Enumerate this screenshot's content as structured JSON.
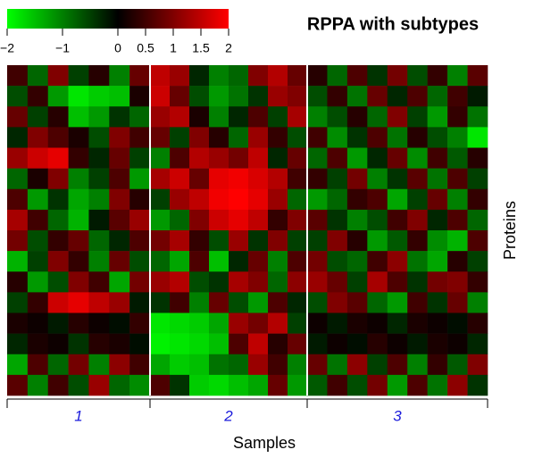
{
  "chart_data": {
    "type": "heatmap",
    "title": "RPPA with subtypes",
    "xlabel": "Samples",
    "ylabel": "Proteins",
    "zlim": [
      -2,
      2
    ],
    "colors": [
      "#00ff00",
      "#000000",
      "#ff0000"
    ],
    "zticks": [
      {
        "value": -2,
        "label": "−2"
      },
      {
        "value": -1,
        "label": "−1"
      },
      0,
      0.5,
      1,
      1.5,
      2
    ],
    "series": [
      {
        "name": "1",
        "values": [
          [
            0.5,
            -0.8,
            1,
            -0.5,
            0.3,
            -1,
            0.8
          ],
          [
            -0.6,
            0.4,
            -1.2,
            -1.8,
            -1.6,
            -1.5,
            0.2
          ],
          [
            0.8,
            -0.5,
            0.3,
            -1.5,
            -1.2,
            -0.4,
            -0.8
          ],
          [
            -0.3,
            1,
            0.6,
            0.2,
            -0.6,
            1,
            0.5
          ],
          [
            1.2,
            1.6,
            1.8,
            0.4,
            -0.3,
            0.8,
            -0.5
          ],
          [
            -0.8,
            0.2,
            1,
            -1,
            -0.5,
            0.6,
            -1.2
          ],
          [
            0.6,
            -1.2,
            -0.4,
            -1.3,
            -1,
            1,
            0.3
          ],
          [
            1.3,
            0.5,
            -0.8,
            -1.4,
            -0.2,
            0.7,
            1.2
          ],
          [
            0.9,
            -0.6,
            0.4,
            0.8,
            -0.8,
            -0.3,
            0.6
          ],
          [
            -1.4,
            -0.5,
            1,
            0.4,
            -1,
            0.8,
            -0.6
          ],
          [
            0.3,
            -1.2,
            -0.6,
            1,
            0.5,
            -1.3,
            0.9
          ],
          [
            -0.5,
            0.4,
            1.6,
            1.8,
            1.5,
            1.2,
            -0.2
          ],
          [
            0.2,
            0.1,
            -0.2,
            0.3,
            0.1,
            -0.1,
            0.4
          ],
          [
            -0.3,
            0.2,
            0.1,
            -0.4,
            0.3,
            0.2,
            -0.1
          ],
          [
            -1.3,
            0.6,
            -0.8,
            0.9,
            -1,
            1.1,
            0.5
          ],
          [
            0.7,
            -1,
            0.5,
            -0.6,
            1.2,
            -0.8,
            -1.1
          ]
        ]
      },
      {
        "name": "2",
        "values": [
          [
            1.5,
            1.2,
            -0.3,
            -1,
            -0.8,
            1,
            1.4,
            0.8
          ],
          [
            1.6,
            0.8,
            -0.6,
            -1.2,
            -0.9,
            -0.4,
            1.2,
            1
          ],
          [
            1.2,
            1.4,
            0.2,
            -1,
            -0.3,
            0.6,
            -0.5,
            1.3
          ],
          [
            0.8,
            -0.5,
            1,
            0.3,
            -0.8,
            1.2,
            0.4,
            -0.6
          ],
          [
            -1,
            0.6,
            1.4,
            1.2,
            0.9,
            1.5,
            -0.3,
            0.8
          ],
          [
            1.3,
            1.6,
            0.8,
            1.8,
            1.9,
            1.7,
            1.4,
            0.5
          ],
          [
            -0.5,
            1.2,
            1.5,
            1.9,
            2,
            1.8,
            1.2,
            -0.8
          ],
          [
            -1.2,
            -0.8,
            1,
            1.6,
            1.8,
            1.5,
            0.4,
            1
          ],
          [
            0.9,
            1.3,
            0.4,
            -0.6,
            1.2,
            -0.4,
            1,
            -0.5
          ],
          [
            -0.8,
            -1.3,
            0.6,
            -1.5,
            -0.3,
            0.8,
            -1,
            0.6
          ],
          [
            1.2,
            1.4,
            -0.6,
            -0.4,
            1.3,
            1,
            -0.8,
            1.1
          ],
          [
            -0.4,
            0.5,
            -1,
            0.8,
            -0.6,
            -1.2,
            0.6,
            -0.3
          ],
          [
            -1.8,
            -1.7,
            -1.6,
            -1.3,
            1.2,
            0.9,
            1.4,
            -0.5
          ],
          [
            -1.9,
            -1.8,
            -1.7,
            -1.5,
            0.6,
            1.5,
            0.3,
            0.8
          ],
          [
            -1.3,
            -1.6,
            -1.5,
            -0.9,
            -0.8,
            1.2,
            0.5,
            -1
          ],
          [
            0.6,
            -0.4,
            -1.6,
            -1.7,
            -1.5,
            -1.3,
            0.8,
            -1.2
          ]
        ]
      },
      {
        "name": "3",
        "values": [
          [
            0.3,
            -0.8,
            0.6,
            -0.4,
            0.9,
            -0.6,
            0.4,
            -1,
            0.7
          ],
          [
            -0.6,
            0.4,
            -0.9,
            0.8,
            -0.3,
            0.6,
            -0.8,
            0.5,
            -0.2
          ],
          [
            -1,
            -0.6,
            0.3,
            -0.8,
            1,
            -0.5,
            -1.2,
            0.4,
            -0.9
          ],
          [
            0.5,
            -1.1,
            -0.4,
            0.6,
            -0.9,
            0.3,
            -0.6,
            -1,
            -1.8
          ],
          [
            -0.8,
            0.6,
            -1.2,
            -0.3,
            0.8,
            -1.1,
            0.5,
            -0.7,
            0.3
          ],
          [
            0.4,
            -0.5,
            0.9,
            -1,
            -0.4,
            0.7,
            -0.9,
            0.6,
            -0.5
          ],
          [
            -1.2,
            -0.8,
            0.4,
            0.6,
            -1.3,
            -0.5,
            0.8,
            -1,
            0.4
          ],
          [
            0.7,
            -0.4,
            -1,
            -0.6,
            0.5,
            1,
            -0.3,
            0.6,
            -0.8
          ],
          [
            -0.5,
            1,
            0.3,
            -1.2,
            -0.7,
            0.4,
            -1.1,
            -1.4,
            0.6
          ],
          [
            0.9,
            -0.6,
            -0.8,
            0.5,
            1.1,
            -0.9,
            -1.3,
            0.3,
            -0.5
          ],
          [
            1.2,
            0.8,
            -0.5,
            1.3,
            0.6,
            -0.4,
            0.9,
            1,
            0.4
          ],
          [
            -0.6,
            1,
            0.7,
            -0.8,
            -1.2,
            0.5,
            -0.4,
            0.8,
            -1
          ],
          [
            0.1,
            -0.2,
            0.2,
            0.1,
            -0.3,
            0.2,
            0.1,
            -0.1,
            0.3
          ],
          [
            -0.2,
            0.1,
            -0.1,
            0.3,
            0.1,
            -0.2,
            0.2,
            0.1,
            -0.3
          ],
          [
            0.8,
            -0.9,
            1.1,
            -0.5,
            0.6,
            -1,
            0.4,
            -0.7,
            1
          ],
          [
            -0.7,
            0.5,
            -0.6,
            0.9,
            -1.2,
            0.6,
            -0.9,
            1.1,
            -0.4
          ]
        ]
      }
    ]
  }
}
